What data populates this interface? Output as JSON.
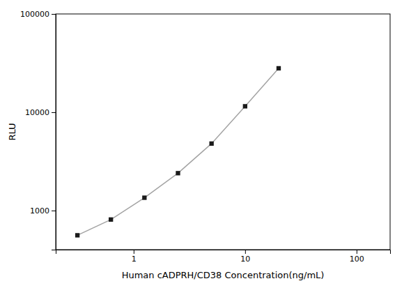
{
  "chart_data": {
    "type": "line",
    "xlabel": "Human cADPRH/CD38 Concentration(ng/mL)",
    "ylabel": "RLU",
    "x": [
      0.313,
      0.625,
      1.25,
      2.5,
      5,
      10,
      20
    ],
    "values": [
      560,
      810,
      1350,
      2400,
      4800,
      11500,
      28000
    ],
    "color": "#1a1a1a",
    "marker": "square",
    "log": true,
    "grid": false,
    "xlim": [
      0.2,
      200
    ],
    "ylim": [
      400,
      100000
    ],
    "xticks": [
      1,
      10,
      100
    ],
    "yticks": [
      1000,
      10000,
      100000
    ]
  }
}
